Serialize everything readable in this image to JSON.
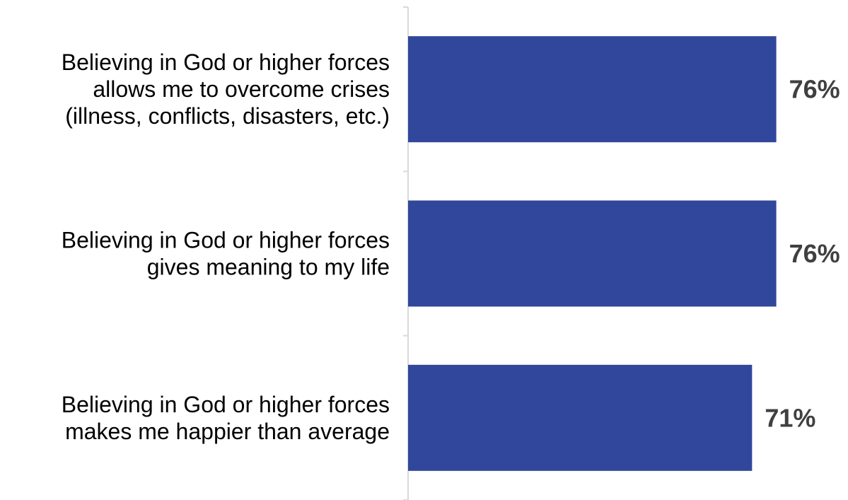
{
  "chart_data": {
    "type": "bar",
    "orientation": "horizontal",
    "categories": [
      "Believing in God or higher forces allows me to overcome crises (illness, conflicts, disasters, etc.)",
      "Believing in God or higher forces gives meaning to my life",
      "Believing in God or higher forces makes me happier than average"
    ],
    "category_lines": [
      [
        "Believing in God or higher forces",
        "allows me to overcome crises",
        "(illness, conflicts, disasters, etc.)"
      ],
      [
        "Believing in God or higher forces",
        "gives meaning to my life"
      ],
      [
        "Believing in God or higher forces",
        "makes me happier than average"
      ]
    ],
    "values": [
      76,
      76,
      71
    ],
    "value_labels": [
      "76%",
      "76%",
      "71%"
    ],
    "xlim": [
      0,
      100
    ],
    "title": "",
    "xlabel": "",
    "ylabel": "",
    "grid": false,
    "legend": "none",
    "colors": {
      "bar": "#31479b",
      "value_label": "#404040",
      "category_label": "#000000",
      "axis": "#d9d9d9"
    }
  }
}
